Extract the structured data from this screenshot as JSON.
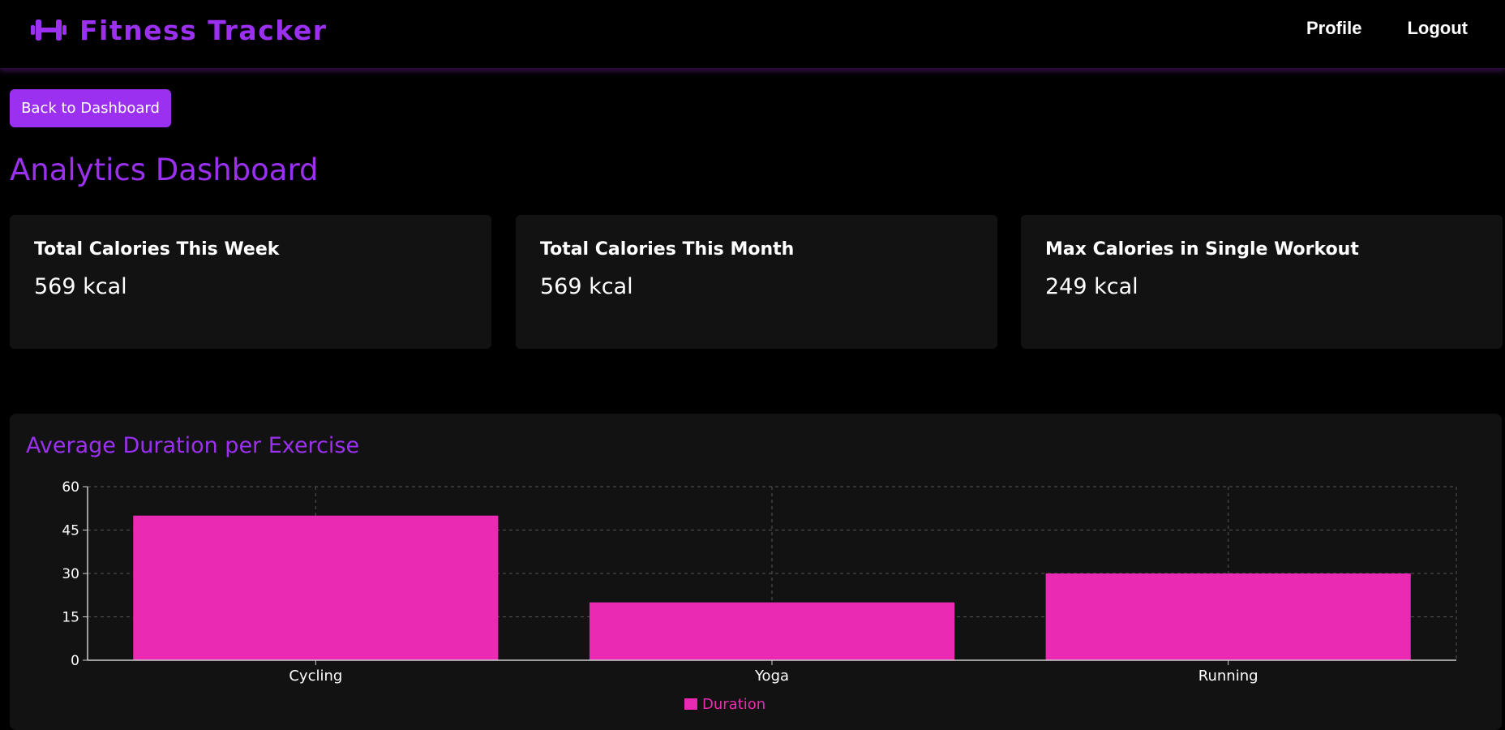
{
  "header": {
    "brand": "Fitness Tracker",
    "brand_icon": "dumbbell-icon",
    "nav": {
      "profile": "Profile",
      "logout": "Logout"
    }
  },
  "back_button": "Back to Dashboard",
  "page_title": "Analytics Dashboard",
  "stats": [
    {
      "label": "Total Calories This Week",
      "value": "569 kcal"
    },
    {
      "label": "Total Calories This Month",
      "value": "569 kcal"
    },
    {
      "label": "Max Calories in Single Workout",
      "value": "249 kcal"
    }
  ],
  "colors": {
    "accent": "#9b30f0",
    "bar": "#eb2ab4",
    "card_bg": "#121212",
    "page_bg": "#000000"
  },
  "chart_title": "Average Duration per Exercise",
  "chart_data": {
    "type": "bar",
    "title": "Average Duration per Exercise",
    "categories": [
      "Cycling",
      "Yoga",
      "Running"
    ],
    "series": [
      {
        "name": "Duration",
        "values": [
          50,
          20,
          30
        ]
      }
    ],
    "xlabel": "",
    "ylabel": "",
    "ylim": [
      0,
      60
    ],
    "yticks": [
      0,
      15,
      30,
      45,
      60
    ],
    "grid": true,
    "legend": "bottom-center"
  }
}
